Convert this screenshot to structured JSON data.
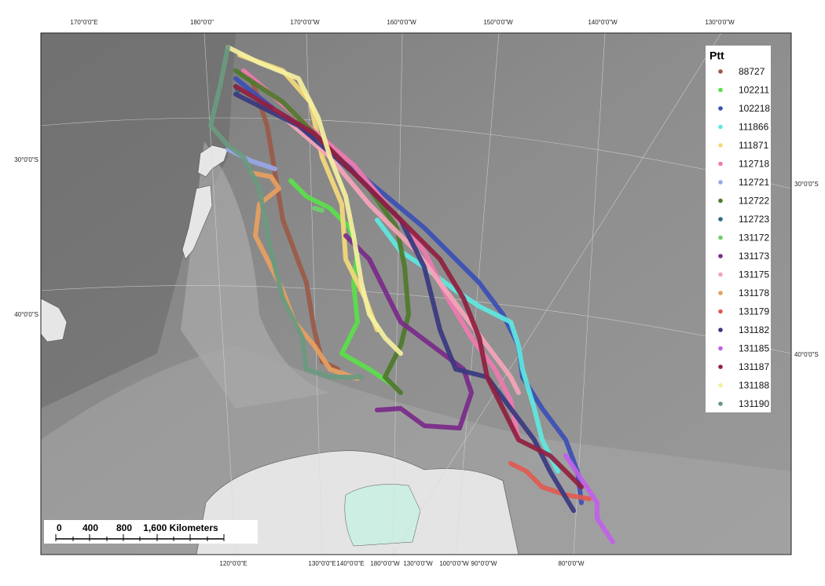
{
  "map": {
    "top_labels": [
      "170°0'0\"E",
      "180°0'0\"",
      "170°0'0\"W",
      "160°0'0\"W",
      "150°0'0\"W",
      "140°0'0\"W",
      "130°0'0\"W"
    ],
    "left_labels": [
      "30°0'0\"S",
      "40°0'0\"S"
    ],
    "right_labels": [
      "30°0'0\"S",
      "40°0'0\"S"
    ],
    "bottom_labels": [
      "120°0'0\"E",
      "130°0'0\"E",
      "140°0'0\"E",
      "180°0'0\"W",
      "130°0'0\"W",
      "100°0'0\"W",
      "90°0'0\"W",
      "80°0'0\"W"
    ],
    "legend": {
      "title": "Ptt",
      "items": [
        {
          "name": "88727",
          "color": "#9b5a48"
        },
        {
          "name": "102211",
          "color": "#5be04a"
        },
        {
          "name": "102218",
          "color": "#3b4fb5"
        },
        {
          "name": "111866",
          "color": "#5ee8e0"
        },
        {
          "name": "111871",
          "color": "#f5d97a"
        },
        {
          "name": "112718",
          "color": "#f07ab0"
        },
        {
          "name": "112721",
          "color": "#98a8e8"
        },
        {
          "name": "112722",
          "color": "#4e7a2a"
        },
        {
          "name": "112723",
          "color": "#2e6a80"
        },
        {
          "name": "131172",
          "color": "#6ccf6c"
        },
        {
          "name": "131173",
          "color": "#7a2a8a"
        },
        {
          "name": "131175",
          "color": "#f5a5b8"
        },
        {
          "name": "131178",
          "color": "#e8a060"
        },
        {
          "name": "131179",
          "color": "#e05a50"
        },
        {
          "name": "131182",
          "color": "#383880"
        },
        {
          "name": "131185",
          "color": "#c060e8"
        },
        {
          "name": "131187",
          "color": "#902040"
        },
        {
          "name": "131188",
          "color": "#f5f0a0"
        },
        {
          "name": "131190",
          "color": "#6a9a80"
        }
      ]
    },
    "scale_bar": {
      "labels": [
        "0",
        "400",
        "800",
        "1,600 Kilometers"
      ]
    }
  }
}
